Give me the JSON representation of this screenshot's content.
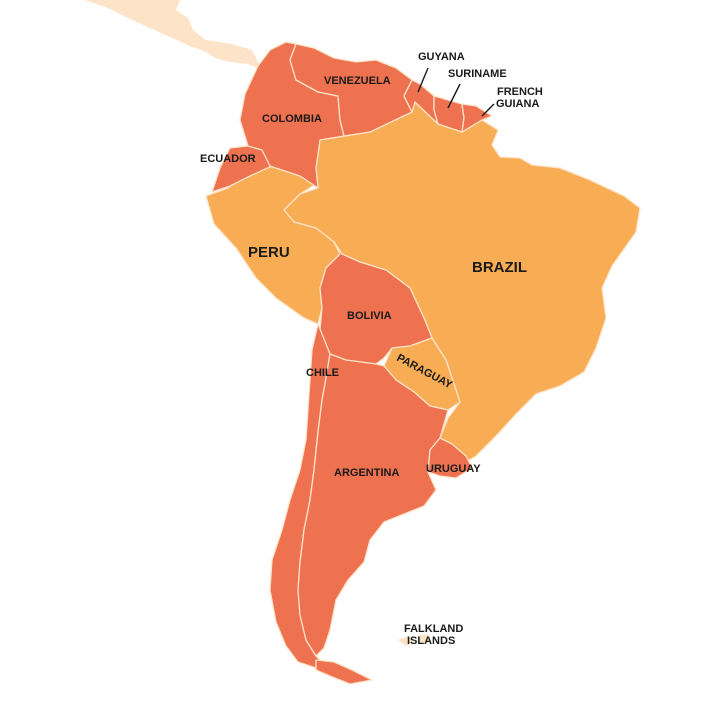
{
  "colors": {
    "highlight": "#ee7150",
    "base": "#f8ad55",
    "context": "#fde3c8",
    "ocean": "#ffffff",
    "label": "#1a1a1a"
  },
  "countries": [
    {
      "id": "venezuela",
      "name": "VENEZUELA",
      "category": "highlight"
    },
    {
      "id": "guyana",
      "name": "GUYANA",
      "category": "highlight"
    },
    {
      "id": "suriname",
      "name": "SURINAME",
      "category": "highlight"
    },
    {
      "id": "french-guiana",
      "name": "FRENCH GUIANA",
      "name_lines": [
        "FRENCH",
        "GUIANA"
      ],
      "category": "highlight"
    },
    {
      "id": "colombia",
      "name": "COLOMBIA",
      "category": "highlight"
    },
    {
      "id": "ecuador",
      "name": "ECUADOR",
      "category": "highlight"
    },
    {
      "id": "peru",
      "name": "PERU",
      "category": "base"
    },
    {
      "id": "brazil",
      "name": "BRAZIL",
      "category": "base"
    },
    {
      "id": "bolivia",
      "name": "BOLIVIA",
      "category": "highlight"
    },
    {
      "id": "paraguay",
      "name": "PARAGUAY",
      "category": "base"
    },
    {
      "id": "chile",
      "name": "CHILE",
      "category": "highlight"
    },
    {
      "id": "argentina",
      "name": "ARGENTINA",
      "category": "highlight"
    },
    {
      "id": "uruguay",
      "name": "URUGUAY",
      "category": "highlight"
    },
    {
      "id": "falklands",
      "name": "FALKLAND ISLANDS",
      "name_lines": [
        "FALKLAND",
        "ISLANDS"
      ],
      "category": "context"
    }
  ]
}
